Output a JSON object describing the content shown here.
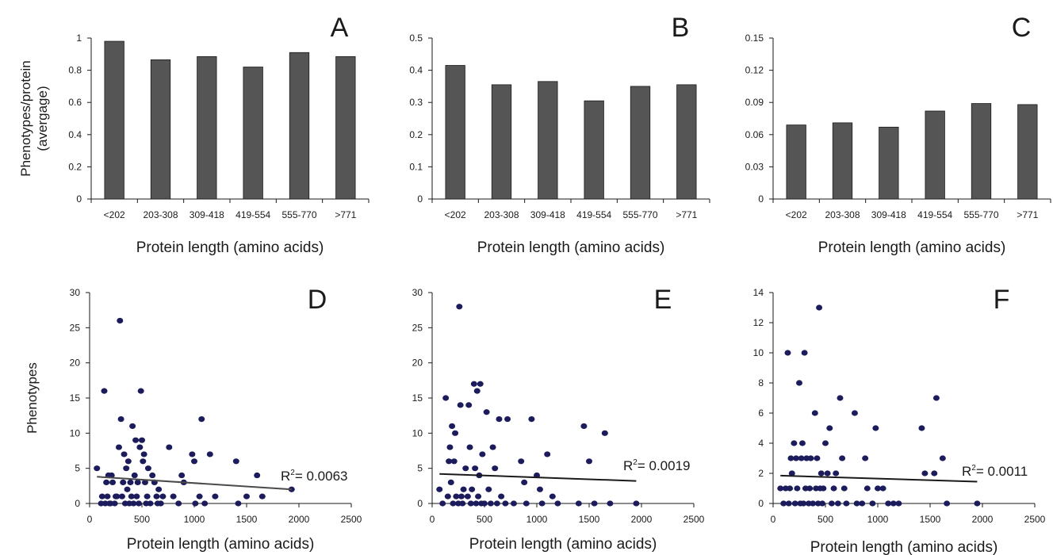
{
  "chart_data": [
    {
      "panel": "A",
      "type": "bar",
      "categories": [
        "<202",
        "203-308",
        "309-418",
        "419-554",
        "555-770",
        ">771"
      ],
      "values": [
        0.98,
        0.865,
        0.885,
        0.82,
        0.91,
        0.885
      ],
      "xlabel": "Protein length (amino acids)",
      "ylabel_lines": [
        "Phenotypes/protein",
        "(avergage)"
      ],
      "ylim": [
        0,
        1
      ],
      "yticks": [
        "0",
        "0.2",
        "0.4",
        "0.6",
        "0.8",
        "1"
      ],
      "bar_color": "#555555",
      "grid": false
    },
    {
      "panel": "B",
      "type": "bar",
      "categories": [
        "<202",
        "203-308",
        "309-418",
        "419-554",
        "555-770",
        ">771"
      ],
      "values": [
        0.415,
        0.355,
        0.365,
        0.305,
        0.35,
        0.355
      ],
      "xlabel": "Protein length (amino acids)",
      "ylabel_lines": [],
      "ylim": [
        0,
        0.5
      ],
      "yticks": [
        "0",
        "0.1",
        "0.2",
        "0.3",
        "0.4",
        "0.5"
      ],
      "bar_color": "#555555",
      "grid": false
    },
    {
      "panel": "C",
      "type": "bar",
      "categories": [
        "<202",
        "203-308",
        "309-418",
        "419-554",
        "555-770",
        ">771"
      ],
      "values": [
        0.069,
        0.071,
        0.067,
        0.082,
        0.089,
        0.088
      ],
      "xlabel": "Protein length (amino acids)",
      "ylabel_lines": [],
      "ylim": [
        0,
        0.15
      ],
      "yticks": [
        "0",
        "0.03",
        "0.06",
        "0.09",
        "0.12",
        "0.15"
      ],
      "bar_color": "#555555",
      "grid": false
    },
    {
      "panel": "D",
      "type": "scatter",
      "xlabel": "Protein length (amino acids)",
      "ylabel_lines": [
        "Phenotypes"
      ],
      "xlim": [
        0,
        2500
      ],
      "ylim": [
        0,
        30
      ],
      "xticks": [
        "0",
        "500",
        "1000",
        "1500",
        "2000",
        "2500"
      ],
      "yticks": [
        "0",
        "5",
        "10",
        "15",
        "20",
        "25",
        "30"
      ],
      "point_color": "#1c1c5c",
      "trendline": {
        "x": [
          70,
          1930
        ],
        "y": [
          3.8,
          2.0
        ],
        "color": "#4a4a4a"
      },
      "annotation": {
        "r_label": "R",
        "superscript": "2",
        "value_text": "= 0.0063"
      },
      "points": [
        [
          70,
          5
        ],
        [
          110,
          0
        ],
        [
          120,
          1
        ],
        [
          140,
          16
        ],
        [
          150,
          0
        ],
        [
          160,
          3
        ],
        [
          170,
          1
        ],
        [
          180,
          4
        ],
        [
          190,
          0
        ],
        [
          200,
          0
        ],
        [
          210,
          4
        ],
        [
          220,
          3
        ],
        [
          240,
          0
        ],
        [
          250,
          1
        ],
        [
          260,
          1
        ],
        [
          280,
          8
        ],
        [
          290,
          26
        ],
        [
          300,
          12
        ],
        [
          310,
          1
        ],
        [
          320,
          3
        ],
        [
          330,
          7
        ],
        [
          340,
          0
        ],
        [
          350,
          5
        ],
        [
          360,
          2
        ],
        [
          370,
          6
        ],
        [
          380,
          0
        ],
        [
          390,
          3
        ],
        [
          400,
          1
        ],
        [
          410,
          11
        ],
        [
          420,
          0
        ],
        [
          430,
          4
        ],
        [
          440,
          9
        ],
        [
          450,
          1
        ],
        [
          460,
          3
        ],
        [
          470,
          0
        ],
        [
          480,
          8
        ],
        [
          490,
          16
        ],
        [
          500,
          9
        ],
        [
          510,
          6
        ],
        [
          520,
          7
        ],
        [
          530,
          3
        ],
        [
          540,
          0
        ],
        [
          550,
          1
        ],
        [
          560,
          5
        ],
        [
          580,
          0
        ],
        [
          600,
          4
        ],
        [
          620,
          3
        ],
        [
          640,
          1
        ],
        [
          650,
          0
        ],
        [
          660,
          2
        ],
        [
          680,
          0
        ],
        [
          700,
          1
        ],
        [
          760,
          8
        ],
        [
          800,
          1
        ],
        [
          850,
          0
        ],
        [
          880,
          4
        ],
        [
          900,
          3
        ],
        [
          980,
          7
        ],
        [
          1000,
          6
        ],
        [
          1010,
          0
        ],
        [
          1050,
          1
        ],
        [
          1070,
          12
        ],
        [
          1100,
          0
        ],
        [
          1150,
          7
        ],
        [
          1200,
          1
        ],
        [
          1400,
          6
        ],
        [
          1420,
          0
        ],
        [
          1500,
          1
        ],
        [
          1600,
          4
        ],
        [
          1650,
          1
        ],
        [
          1930,
          2
        ]
      ]
    },
    {
      "panel": "E",
      "type": "scatter",
      "xlabel": "Protein length (amino acids)",
      "ylabel_lines": [],
      "xlim": [
        0,
        2500
      ],
      "ylim": [
        0,
        30
      ],
      "xticks": [
        "0",
        "500",
        "1000",
        "1500",
        "2000",
        "2500"
      ],
      "yticks": [
        "0",
        "5",
        "10",
        "15",
        "20",
        "25",
        "30"
      ],
      "point_color": "#1c1c5c",
      "trendline": {
        "x": [
          70,
          1950
        ],
        "y": [
          4.2,
          3.2
        ],
        "color": "#1a1a1a"
      },
      "annotation": {
        "r_label": "R",
        "superscript": "2",
        "value_text": "= 0.0019"
      },
      "points": [
        [
          70,
          2
        ],
        [
          100,
          0
        ],
        [
          130,
          15
        ],
        [
          150,
          1
        ],
        [
          160,
          6
        ],
        [
          170,
          8
        ],
        [
          180,
          3
        ],
        [
          190,
          11
        ],
        [
          200,
          0
        ],
        [
          210,
          6
        ],
        [
          220,
          10
        ],
        [
          230,
          1
        ],
        [
          250,
          0
        ],
        [
          260,
          28
        ],
        [
          270,
          14
        ],
        [
          280,
          1
        ],
        [
          290,
          0
        ],
        [
          300,
          2
        ],
        [
          320,
          5
        ],
        [
          340,
          1
        ],
        [
          350,
          14
        ],
        [
          360,
          8
        ],
        [
          370,
          0
        ],
        [
          380,
          2
        ],
        [
          400,
          17
        ],
        [
          410,
          5
        ],
        [
          420,
          0
        ],
        [
          430,
          16
        ],
        [
          440,
          1
        ],
        [
          450,
          4
        ],
        [
          460,
          17
        ],
        [
          470,
          0
        ],
        [
          480,
          7
        ],
        [
          500,
          0
        ],
        [
          520,
          13
        ],
        [
          540,
          2
        ],
        [
          560,
          0
        ],
        [
          580,
          8
        ],
        [
          600,
          5
        ],
        [
          620,
          0
        ],
        [
          640,
          12
        ],
        [
          660,
          1
        ],
        [
          700,
          0
        ],
        [
          720,
          12
        ],
        [
          780,
          0
        ],
        [
          850,
          6
        ],
        [
          880,
          3
        ],
        [
          900,
          0
        ],
        [
          950,
          12
        ],
        [
          1000,
          4
        ],
        [
          1030,
          2
        ],
        [
          1050,
          0
        ],
        [
          1100,
          7
        ],
        [
          1150,
          1
        ],
        [
          1200,
          0
        ],
        [
          1400,
          0
        ],
        [
          1450,
          11
        ],
        [
          1500,
          6
        ],
        [
          1550,
          0
        ],
        [
          1650,
          10
        ],
        [
          1700,
          0
        ],
        [
          1950,
          0
        ]
      ]
    },
    {
      "panel": "F",
      "type": "scatter",
      "xlabel": "Protein length (amino acids)",
      "ylabel_lines": [],
      "xlim": [
        0,
        2500
      ],
      "ylim": [
        0,
        14
      ],
      "xticks": [
        "0",
        "500",
        "1000",
        "1500",
        "2000",
        "2500"
      ],
      "yticks": [
        "0",
        "2",
        "4",
        "6",
        "8",
        "10",
        "12",
        "14"
      ],
      "point_color": "#1c1c5c",
      "trendline": {
        "x": [
          70,
          1950
        ],
        "y": [
          1.85,
          1.45
        ],
        "color": "#1a1a1a"
      },
      "annotation": {
        "r_label": "R",
        "superscript": "2",
        "value_text": "= 0.0011"
      },
      "points": [
        [
          70,
          1
        ],
        [
          100,
          0
        ],
        [
          120,
          1
        ],
        [
          140,
          10
        ],
        [
          150,
          0
        ],
        [
          160,
          1
        ],
        [
          170,
          3
        ],
        [
          180,
          2
        ],
        [
          200,
          4
        ],
        [
          210,
          0
        ],
        [
          220,
          3
        ],
        [
          230,
          1
        ],
        [
          250,
          8
        ],
        [
          260,
          0
        ],
        [
          270,
          3
        ],
        [
          280,
          4
        ],
        [
          290,
          0
        ],
        [
          300,
          10
        ],
        [
          310,
          1
        ],
        [
          320,
          3
        ],
        [
          340,
          0
        ],
        [
          350,
          1
        ],
        [
          360,
          3
        ],
        [
          380,
          0
        ],
        [
          400,
          6
        ],
        [
          410,
          1
        ],
        [
          420,
          3
        ],
        [
          430,
          0
        ],
        [
          440,
          13
        ],
        [
          450,
          1
        ],
        [
          460,
          2
        ],
        [
          470,
          0
        ],
        [
          480,
          1
        ],
        [
          500,
          4
        ],
        [
          520,
          2
        ],
        [
          540,
          5
        ],
        [
          560,
          0
        ],
        [
          580,
          1
        ],
        [
          600,
          2
        ],
        [
          620,
          0
        ],
        [
          640,
          7
        ],
        [
          660,
          3
        ],
        [
          680,
          1
        ],
        [
          700,
          0
        ],
        [
          780,
          6
        ],
        [
          800,
          0
        ],
        [
          850,
          0
        ],
        [
          880,
          3
        ],
        [
          900,
          1
        ],
        [
          950,
          0
        ],
        [
          980,
          5
        ],
        [
          1000,
          1
        ],
        [
          1050,
          1
        ],
        [
          1100,
          0
        ],
        [
          1150,
          0
        ],
        [
          1200,
          0
        ],
        [
          1420,
          5
        ],
        [
          1450,
          2
        ],
        [
          1540,
          2
        ],
        [
          1560,
          7
        ],
        [
          1620,
          3
        ],
        [
          1660,
          0
        ],
        [
          1950,
          0
        ]
      ]
    }
  ]
}
